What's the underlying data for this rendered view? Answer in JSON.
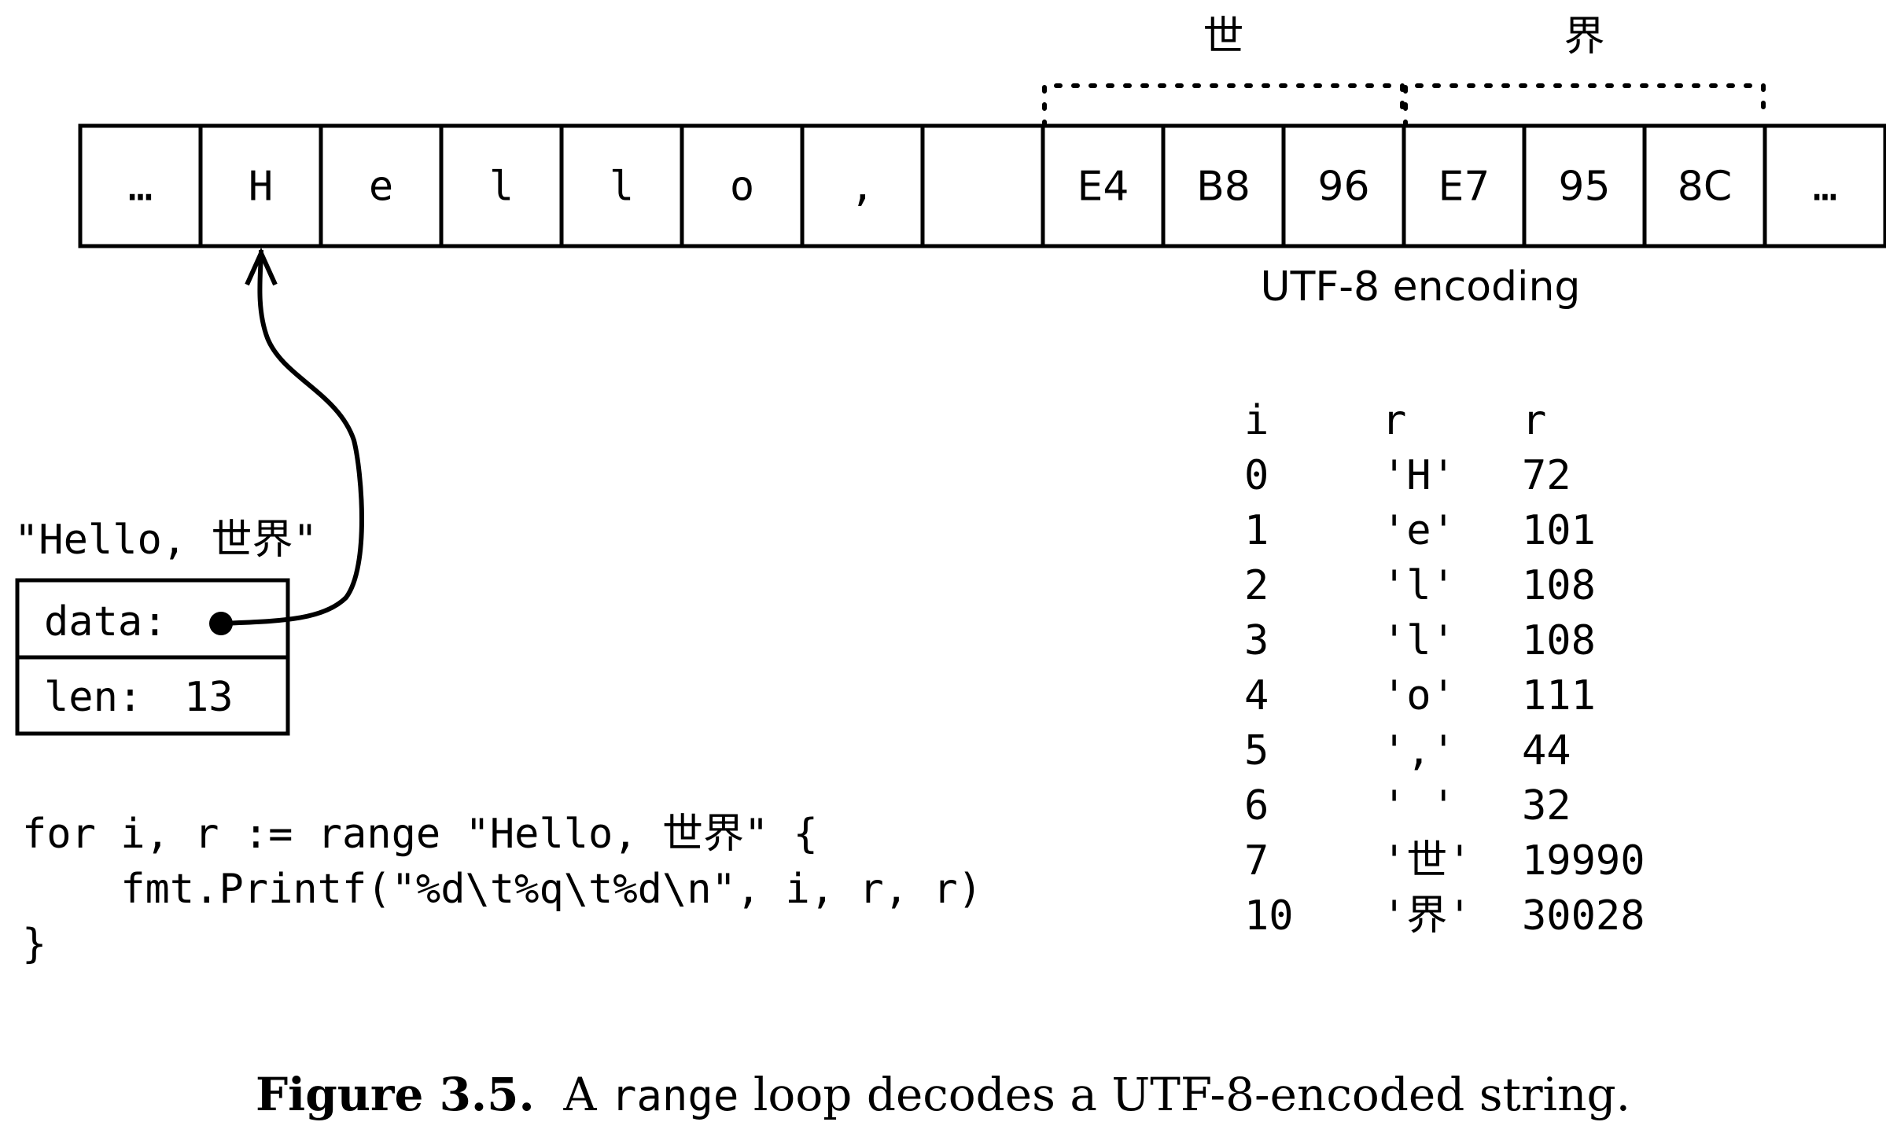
{
  "cells": [
    "…",
    "H",
    "e",
    "l",
    "l",
    "o",
    ",",
    "",
    "E4",
    "B8",
    "96",
    "E7",
    "95",
    "8C",
    "…"
  ],
  "groups": [
    {
      "char": "世",
      "first_cell": 8,
      "last_cell": 10
    },
    {
      "char": "界",
      "first_cell": 11,
      "last_cell": 13
    }
  ],
  "encoding_label": "UTF-8 encoding",
  "string_literal": "\"Hello, 世界\"",
  "header": {
    "data_label": "data:",
    "len_label": "len:",
    "len_value": "13"
  },
  "code": [
    "for i, r := range \"Hello, 世界\" {",
    "    fmt.Printf(\"%d\\t%q\\t%d\\n\", i, r, r)",
    "}"
  ],
  "output_table": {
    "headers": [
      "i",
      "r",
      "r"
    ],
    "rows": [
      [
        "0",
        "'H'",
        "72"
      ],
      [
        "1",
        "'e'",
        "101"
      ],
      [
        "2",
        "'l'",
        "108"
      ],
      [
        "3",
        "'l'",
        "108"
      ],
      [
        "4",
        "'o'",
        "111"
      ],
      [
        "5",
        "','",
        "44"
      ],
      [
        "6",
        "' '",
        "32"
      ],
      [
        "7",
        "'世'",
        "19990"
      ],
      [
        "10",
        "'界'",
        "30028"
      ]
    ]
  },
  "caption": {
    "number": "Figure 3.5.",
    "text_before": "A ",
    "code_word": "range",
    "text_after": " loop decodes a UTF-8-encoded string."
  }
}
